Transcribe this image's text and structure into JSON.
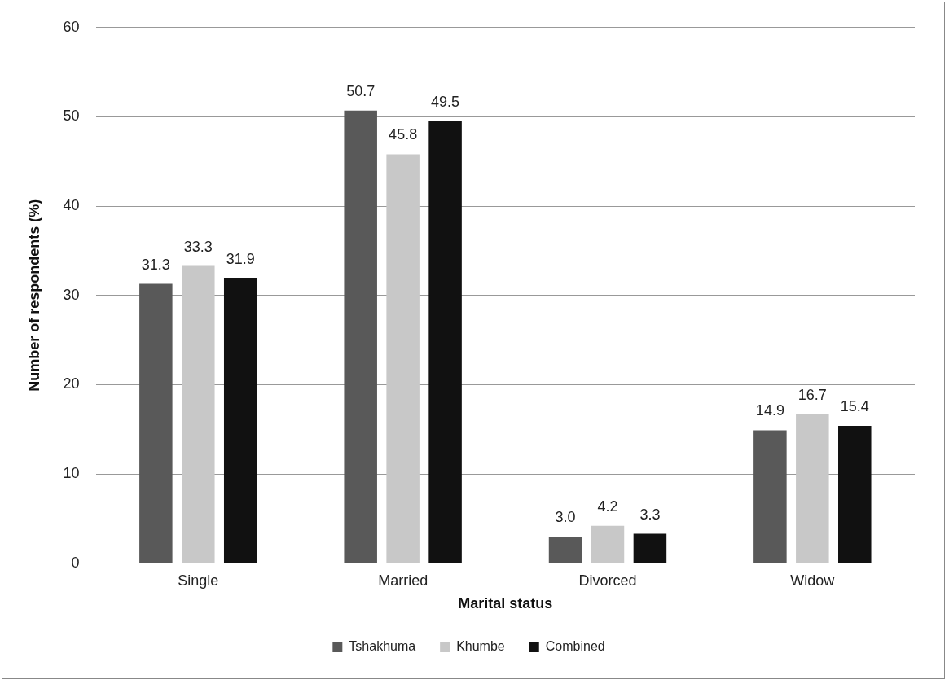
{
  "chart_data": {
    "type": "bar",
    "xlabel": "Marital status",
    "ylabel": "Number of respondents (%)",
    "categories": [
      "Single",
      "Married",
      "Divorced",
      "Widow"
    ],
    "series": [
      {
        "name": "Tshakhuma",
        "color": "#595959",
        "values": [
          31.3,
          50.7,
          3.0,
          14.9
        ],
        "value_labels": [
          "31.3",
          "50.7",
          "3.0",
          "14.9"
        ]
      },
      {
        "name": "Khumbe",
        "color": "#c8c8c8",
        "values": [
          33.3,
          45.8,
          4.2,
          16.7
        ],
        "value_labels": [
          "33.3",
          "45.8",
          "4.2",
          "16.7"
        ]
      },
      {
        "name": "Combined",
        "color": "#111111",
        "values": [
          31.9,
          49.5,
          3.3,
          15.4
        ],
        "value_labels": [
          "31.9",
          "49.5",
          "3.3",
          "15.4"
        ]
      }
    ],
    "ylim": [
      0,
      60
    ],
    "yticks": [
      0,
      10,
      20,
      30,
      40,
      50,
      60
    ],
    "grid": "y",
    "legend": "bottom"
  }
}
